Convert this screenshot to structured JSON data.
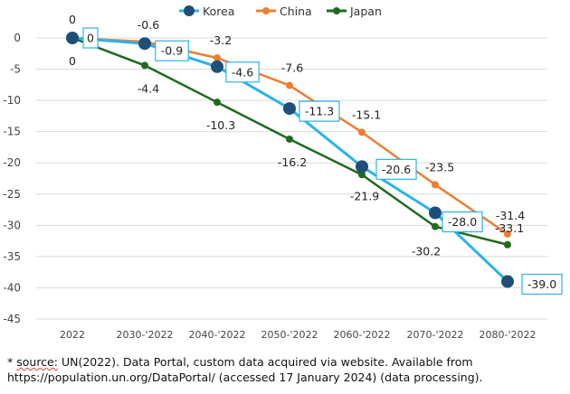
{
  "chart_data": {
    "type": "line",
    "title": "",
    "xlabel": "",
    "ylabel": "",
    "categories": [
      "2022",
      "2030-'2022",
      "2040-'2022",
      "2050-'2022",
      "2060-'2022",
      "2070-'2022",
      "2080-'2022"
    ],
    "ylim": [
      -45,
      0
    ],
    "yticks": [
      0,
      -5,
      -10,
      -15,
      -20,
      -25,
      -30,
      -35,
      -40,
      -45
    ],
    "ytick_labels": [
      "0",
      "-5",
      "-10",
      "-15",
      "-20",
      "-25",
      "-30",
      "-35",
      "-40",
      "-45"
    ],
    "grid": true,
    "legend_position": "top",
    "series": [
      {
        "name": "Korea",
        "color": "#2AB3E8",
        "values": [
          0,
          -0.9,
          -4.6,
          -11.3,
          -20.6,
          -28.0,
          -39.0
        ],
        "labels": [
          "0",
          "-0.9",
          "-4.6",
          "-11.3",
          "-20.6",
          "-28.0",
          "-39.0"
        ]
      },
      {
        "name": "China",
        "color": "#ED7D31",
        "values": [
          0,
          -0.6,
          -3.2,
          -7.6,
          -15.1,
          -23.5,
          -31.4
        ],
        "labels": [
          "0",
          "-0.6",
          "-3.2",
          "-7.6",
          "-15.1",
          "-23.5",
          "-31.4"
        ]
      },
      {
        "name": "Japan",
        "color": "#1E6B1E",
        "values": [
          0,
          -4.4,
          -10.3,
          -16.2,
          -21.9,
          -30.2,
          -33.1
        ],
        "labels": [
          "0",
          "-4.4",
          "-10.3",
          "-16.2",
          "-21.9",
          "-30.2",
          "-33.1"
        ]
      }
    ],
    "annotations": [],
    "label_box_color": "#2AB3E8"
  },
  "footnote": {
    "line1_prefix": "* ",
    "line1_source": "source:",
    "line1_rest": " UN(2022). Data Portal, custom data acquired via website. Available from",
    "line2_url": "https://population.un.org/DataPortal/",
    "line2_rest": " (accessed 17 January 2024) (data processing)."
  }
}
